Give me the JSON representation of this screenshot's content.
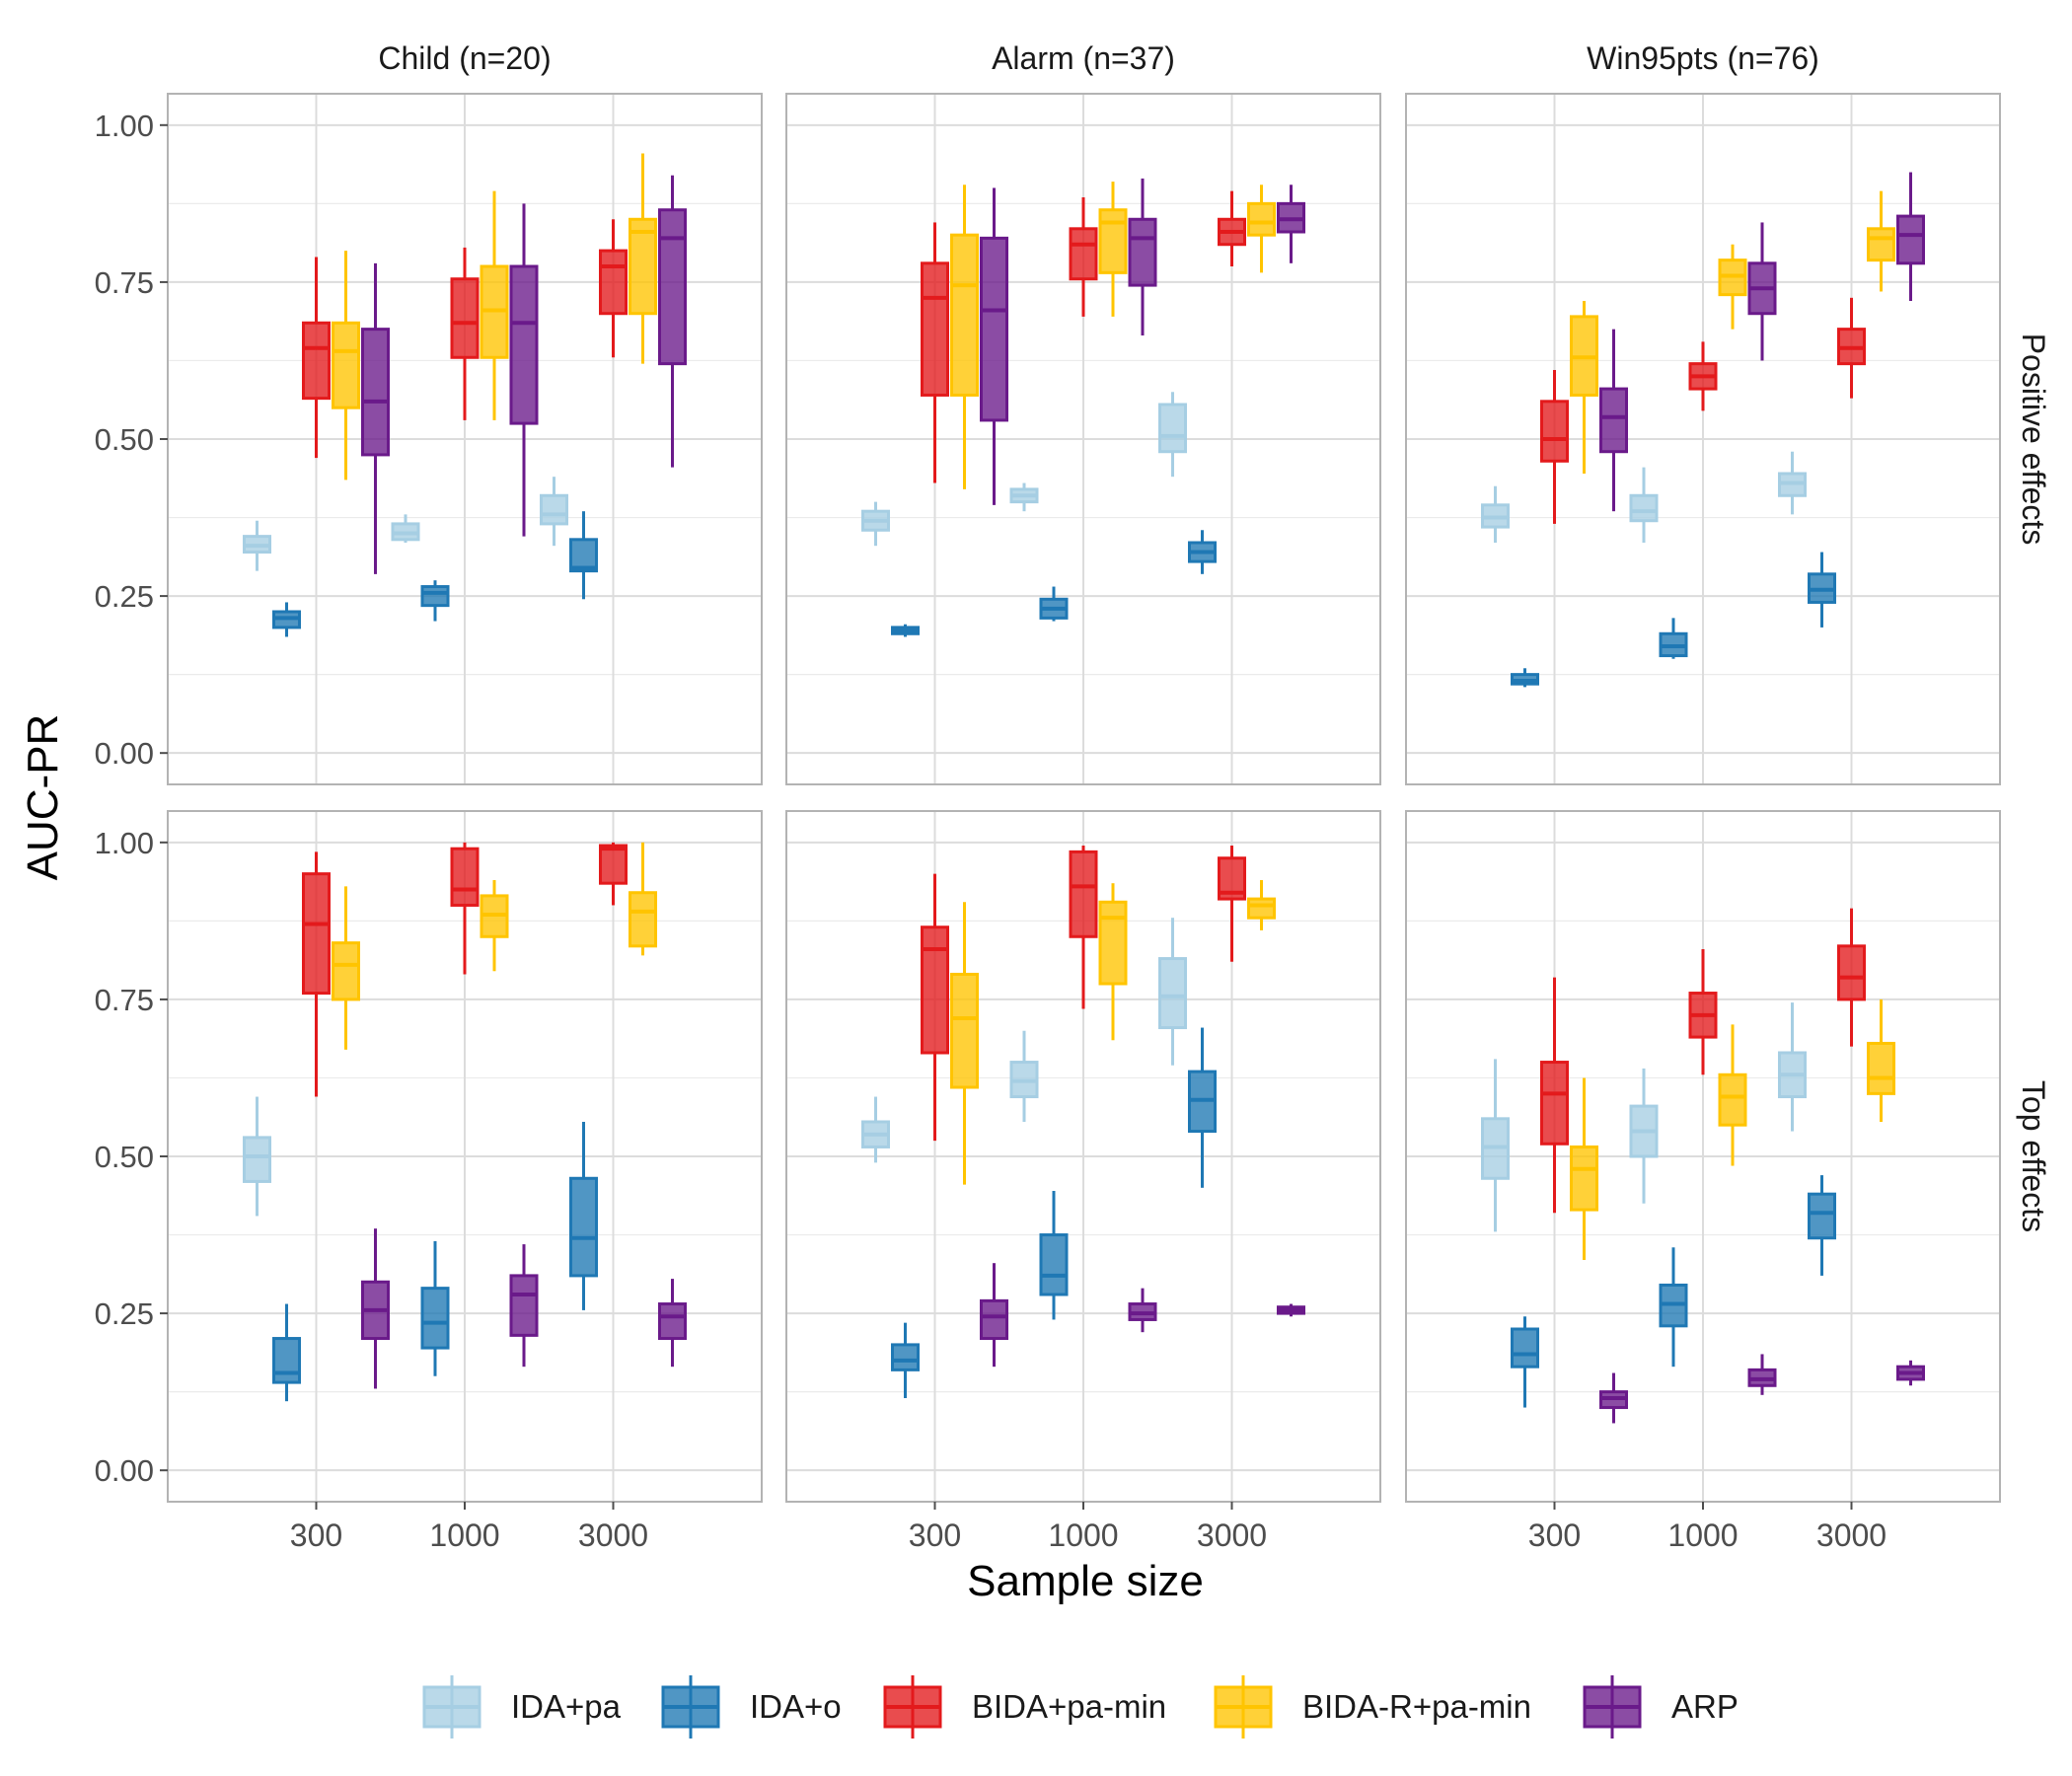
{
  "chart_data": {
    "type": "boxplot",
    "ylabel": "AUC-PR",
    "xlabel": "Sample size",
    "ylim": [
      -0.05,
      1.05
    ],
    "yticks": [
      0.0,
      0.25,
      0.5,
      0.75,
      1.0
    ],
    "ytick_labels": [
      "0.00",
      "0.25",
      "0.50",
      "0.75",
      "1.00"
    ],
    "categories": [
      "300",
      "1000",
      "3000"
    ],
    "columns": [
      "Child (n=20)",
      "Alarm (n=37)",
      "Win95pts (n=76)"
    ],
    "rows": [
      "Positive effects",
      "Top effects"
    ],
    "grid": true,
    "legend_position": "bottom",
    "series": [
      {
        "name": "IDA+pa",
        "color": "#a6cee3"
      },
      {
        "name": "IDA+o",
        "color": "#1f78b4"
      },
      {
        "name": "BIDA+pa-min",
        "color": "#e31a1c"
      },
      {
        "name": "BIDA-R+pa-min",
        "color": "#ffc400"
      },
      {
        "name": "ARP",
        "color": "#6a1a8a"
      }
    ],
    "stat_order": [
      "whisker_low",
      "q1",
      "median",
      "q3",
      "whisker_high"
    ],
    "panels": [
      {
        "column": "Child (n=20)",
        "row": "Positive effects",
        "boxes": {
          "IDA+pa": [
            [
              0.29,
              0.32,
              0.33,
              0.345,
              0.37
            ],
            [
              0.335,
              0.34,
              0.35,
              0.365,
              0.38
            ],
            [
              0.33,
              0.365,
              0.38,
              0.41,
              0.44
            ]
          ],
          "IDA+o": [
            [
              0.185,
              0.2,
              0.215,
              0.225,
              0.24
            ],
            [
              0.21,
              0.235,
              0.255,
              0.265,
              0.275
            ],
            [
              0.245,
              0.29,
              0.295,
              0.34,
              0.385
            ]
          ],
          "BIDA+pa-min": [
            [
              0.47,
              0.565,
              0.645,
              0.685,
              0.79
            ],
            [
              0.53,
              0.63,
              0.685,
              0.755,
              0.805
            ],
            [
              0.63,
              0.7,
              0.775,
              0.8,
              0.85
            ]
          ],
          "BIDA-R+pa-min": [
            [
              0.435,
              0.55,
              0.64,
              0.685,
              0.8
            ],
            [
              0.53,
              0.63,
              0.705,
              0.775,
              0.895
            ],
            [
              0.62,
              0.7,
              0.83,
              0.85,
              0.955
            ]
          ],
          "ARP": [
            [
              0.285,
              0.475,
              0.56,
              0.675,
              0.78
            ],
            [
              0.345,
              0.525,
              0.685,
              0.775,
              0.875
            ],
            [
              0.455,
              0.62,
              0.82,
              0.865,
              0.92
            ]
          ]
        }
      },
      {
        "column": "Alarm (n=37)",
        "row": "Positive effects",
        "boxes": {
          "IDA+pa": [
            [
              0.33,
              0.355,
              0.37,
              0.385,
              0.4
            ],
            [
              0.385,
              0.4,
              0.41,
              0.42,
              0.43
            ],
            [
              0.44,
              0.48,
              0.505,
              0.555,
              0.575
            ]
          ],
          "IDA+o": [
            [
              0.185,
              0.19,
              0.195,
              0.2,
              0.205
            ],
            [
              0.21,
              0.215,
              0.23,
              0.245,
              0.265
            ],
            [
              0.285,
              0.305,
              0.32,
              0.335,
              0.355
            ]
          ],
          "BIDA+pa-min": [
            [
              0.43,
              0.57,
              0.725,
              0.78,
              0.845
            ],
            [
              0.695,
              0.755,
              0.81,
              0.835,
              0.885
            ],
            [
              0.775,
              0.81,
              0.83,
              0.85,
              0.895
            ]
          ],
          "BIDA-R+pa-min": [
            [
              0.42,
              0.57,
              0.745,
              0.825,
              0.905
            ],
            [
              0.695,
              0.765,
              0.845,
              0.865,
              0.91
            ],
            [
              0.765,
              0.825,
              0.845,
              0.875,
              0.905
            ]
          ],
          "ARP": [
            [
              0.395,
              0.53,
              0.705,
              0.82,
              0.9
            ],
            [
              0.665,
              0.745,
              0.82,
              0.85,
              0.915
            ],
            [
              0.78,
              0.83,
              0.85,
              0.875,
              0.905
            ]
          ]
        }
      },
      {
        "column": "Win95pts (n=76)",
        "row": "Positive effects",
        "boxes": {
          "IDA+pa": [
            [
              0.335,
              0.36,
              0.375,
              0.395,
              0.425
            ],
            [
              0.335,
              0.37,
              0.385,
              0.41,
              0.455
            ],
            [
              0.38,
              0.41,
              0.43,
              0.445,
              0.48
            ]
          ],
          "IDA+o": [
            [
              0.105,
              0.11,
              0.115,
              0.125,
              0.135
            ],
            [
              0.15,
              0.155,
              0.17,
              0.19,
              0.215
            ],
            [
              0.2,
              0.24,
              0.26,
              0.285,
              0.32
            ]
          ],
          "BIDA+pa-min": [
            [
              0.365,
              0.465,
              0.5,
              0.56,
              0.61
            ],
            [
              0.545,
              0.58,
              0.6,
              0.62,
              0.655
            ],
            [
              0.565,
              0.62,
              0.645,
              0.675,
              0.725
            ]
          ],
          "BIDA-R+pa-min": [
            [
              0.445,
              0.57,
              0.63,
              0.695,
              0.72
            ],
            [
              0.675,
              0.73,
              0.76,
              0.785,
              0.81
            ],
            [
              0.735,
              0.785,
              0.82,
              0.835,
              0.895
            ]
          ],
          "ARP": [
            [
              0.385,
              0.48,
              0.535,
              0.58,
              0.675
            ],
            [
              0.625,
              0.7,
              0.74,
              0.78,
              0.845
            ],
            [
              0.72,
              0.78,
              0.825,
              0.855,
              0.925
            ]
          ]
        }
      },
      {
        "column": "Child (n=20)",
        "row": "Top effects",
        "boxes": {
          "IDA+pa": [
            [
              0.405,
              0.46,
              0.5,
              0.53,
              0.595
            ],
            null,
            null
          ],
          "IDA+o": [
            [
              0.11,
              0.14,
              0.155,
              0.21,
              0.265
            ],
            [
              0.15,
              0.195,
              0.235,
              0.29,
              0.365
            ],
            [
              0.255,
              0.31,
              0.37,
              0.465,
              0.555
            ]
          ],
          "BIDA+pa-min": [
            [
              0.595,
              0.76,
              0.87,
              0.95,
              0.985
            ],
            [
              0.79,
              0.9,
              0.925,
              0.99,
              1.0
            ],
            [
              0.9,
              0.935,
              0.99,
              0.995,
              1.0
            ]
          ],
          "BIDA-R+pa-min": [
            [
              0.67,
              0.75,
              0.805,
              0.84,
              0.93
            ],
            [
              0.795,
              0.85,
              0.885,
              0.915,
              0.94
            ],
            [
              0.82,
              0.835,
              0.89,
              0.92,
              1.0
            ]
          ],
          "ARP": [
            [
              0.13,
              0.21,
              0.255,
              0.3,
              0.385
            ],
            [
              0.165,
              0.215,
              0.28,
              0.31,
              0.36
            ],
            [
              0.165,
              0.21,
              0.245,
              0.265,
              0.305
            ]
          ]
        }
      },
      {
        "column": "Alarm (n=37)",
        "row": "Top effects",
        "boxes": {
          "IDA+pa": [
            [
              0.49,
              0.515,
              0.535,
              0.555,
              0.595
            ],
            [
              0.555,
              0.595,
              0.62,
              0.65,
              0.7
            ],
            [
              0.645,
              0.705,
              0.755,
              0.815,
              0.88
            ]
          ],
          "IDA+o": [
            [
              0.115,
              0.16,
              0.175,
              0.2,
              0.235
            ],
            [
              0.24,
              0.28,
              0.31,
              0.375,
              0.445
            ],
            [
              0.45,
              0.54,
              0.59,
              0.635,
              0.705
            ]
          ],
          "BIDA+pa-min": [
            [
              0.525,
              0.665,
              0.83,
              0.865,
              0.95
            ],
            [
              0.735,
              0.85,
              0.93,
              0.985,
              0.995
            ],
            [
              0.81,
              0.91,
              0.92,
              0.975,
              0.995
            ]
          ],
          "BIDA-R+pa-min": [
            [
              0.455,
              0.61,
              0.72,
              0.79,
              0.905
            ],
            [
              0.685,
              0.775,
              0.88,
              0.905,
              0.935
            ],
            [
              0.86,
              0.88,
              0.9,
              0.91,
              0.94
            ]
          ],
          "ARP": [
            [
              0.165,
              0.21,
              0.245,
              0.27,
              0.33
            ],
            [
              0.22,
              0.24,
              0.25,
              0.265,
              0.29
            ],
            [
              0.245,
              0.25,
              0.255,
              0.26,
              0.265
            ]
          ]
        }
      },
      {
        "column": "Win95pts (n=76)",
        "row": "Top effects",
        "boxes": {
          "IDA+pa": [
            [
              0.38,
              0.465,
              0.515,
              0.56,
              0.655
            ],
            [
              0.425,
              0.5,
              0.54,
              0.58,
              0.64
            ],
            [
              0.54,
              0.595,
              0.63,
              0.665,
              0.745
            ]
          ],
          "IDA+o": [
            [
              0.1,
              0.165,
              0.185,
              0.225,
              0.245
            ],
            [
              0.165,
              0.23,
              0.265,
              0.295,
              0.355
            ],
            [
              0.31,
              0.37,
              0.41,
              0.44,
              0.47
            ]
          ],
          "BIDA+pa-min": [
            [
              0.41,
              0.52,
              0.6,
              0.65,
              0.785
            ],
            [
              0.63,
              0.69,
              0.725,
              0.76,
              0.83
            ],
            [
              0.675,
              0.75,
              0.785,
              0.835,
              0.895
            ]
          ],
          "BIDA-R+pa-min": [
            [
              0.335,
              0.415,
              0.48,
              0.515,
              0.625
            ],
            [
              0.485,
              0.55,
              0.595,
              0.63,
              0.71
            ],
            [
              0.555,
              0.6,
              0.625,
              0.68,
              0.75
            ]
          ],
          "ARP": [
            [
              0.075,
              0.1,
              0.115,
              0.125,
              0.155
            ],
            [
              0.12,
              0.135,
              0.145,
              0.16,
              0.185
            ],
            [
              0.135,
              0.145,
              0.155,
              0.165,
              0.175
            ]
          ]
        }
      }
    ]
  }
}
